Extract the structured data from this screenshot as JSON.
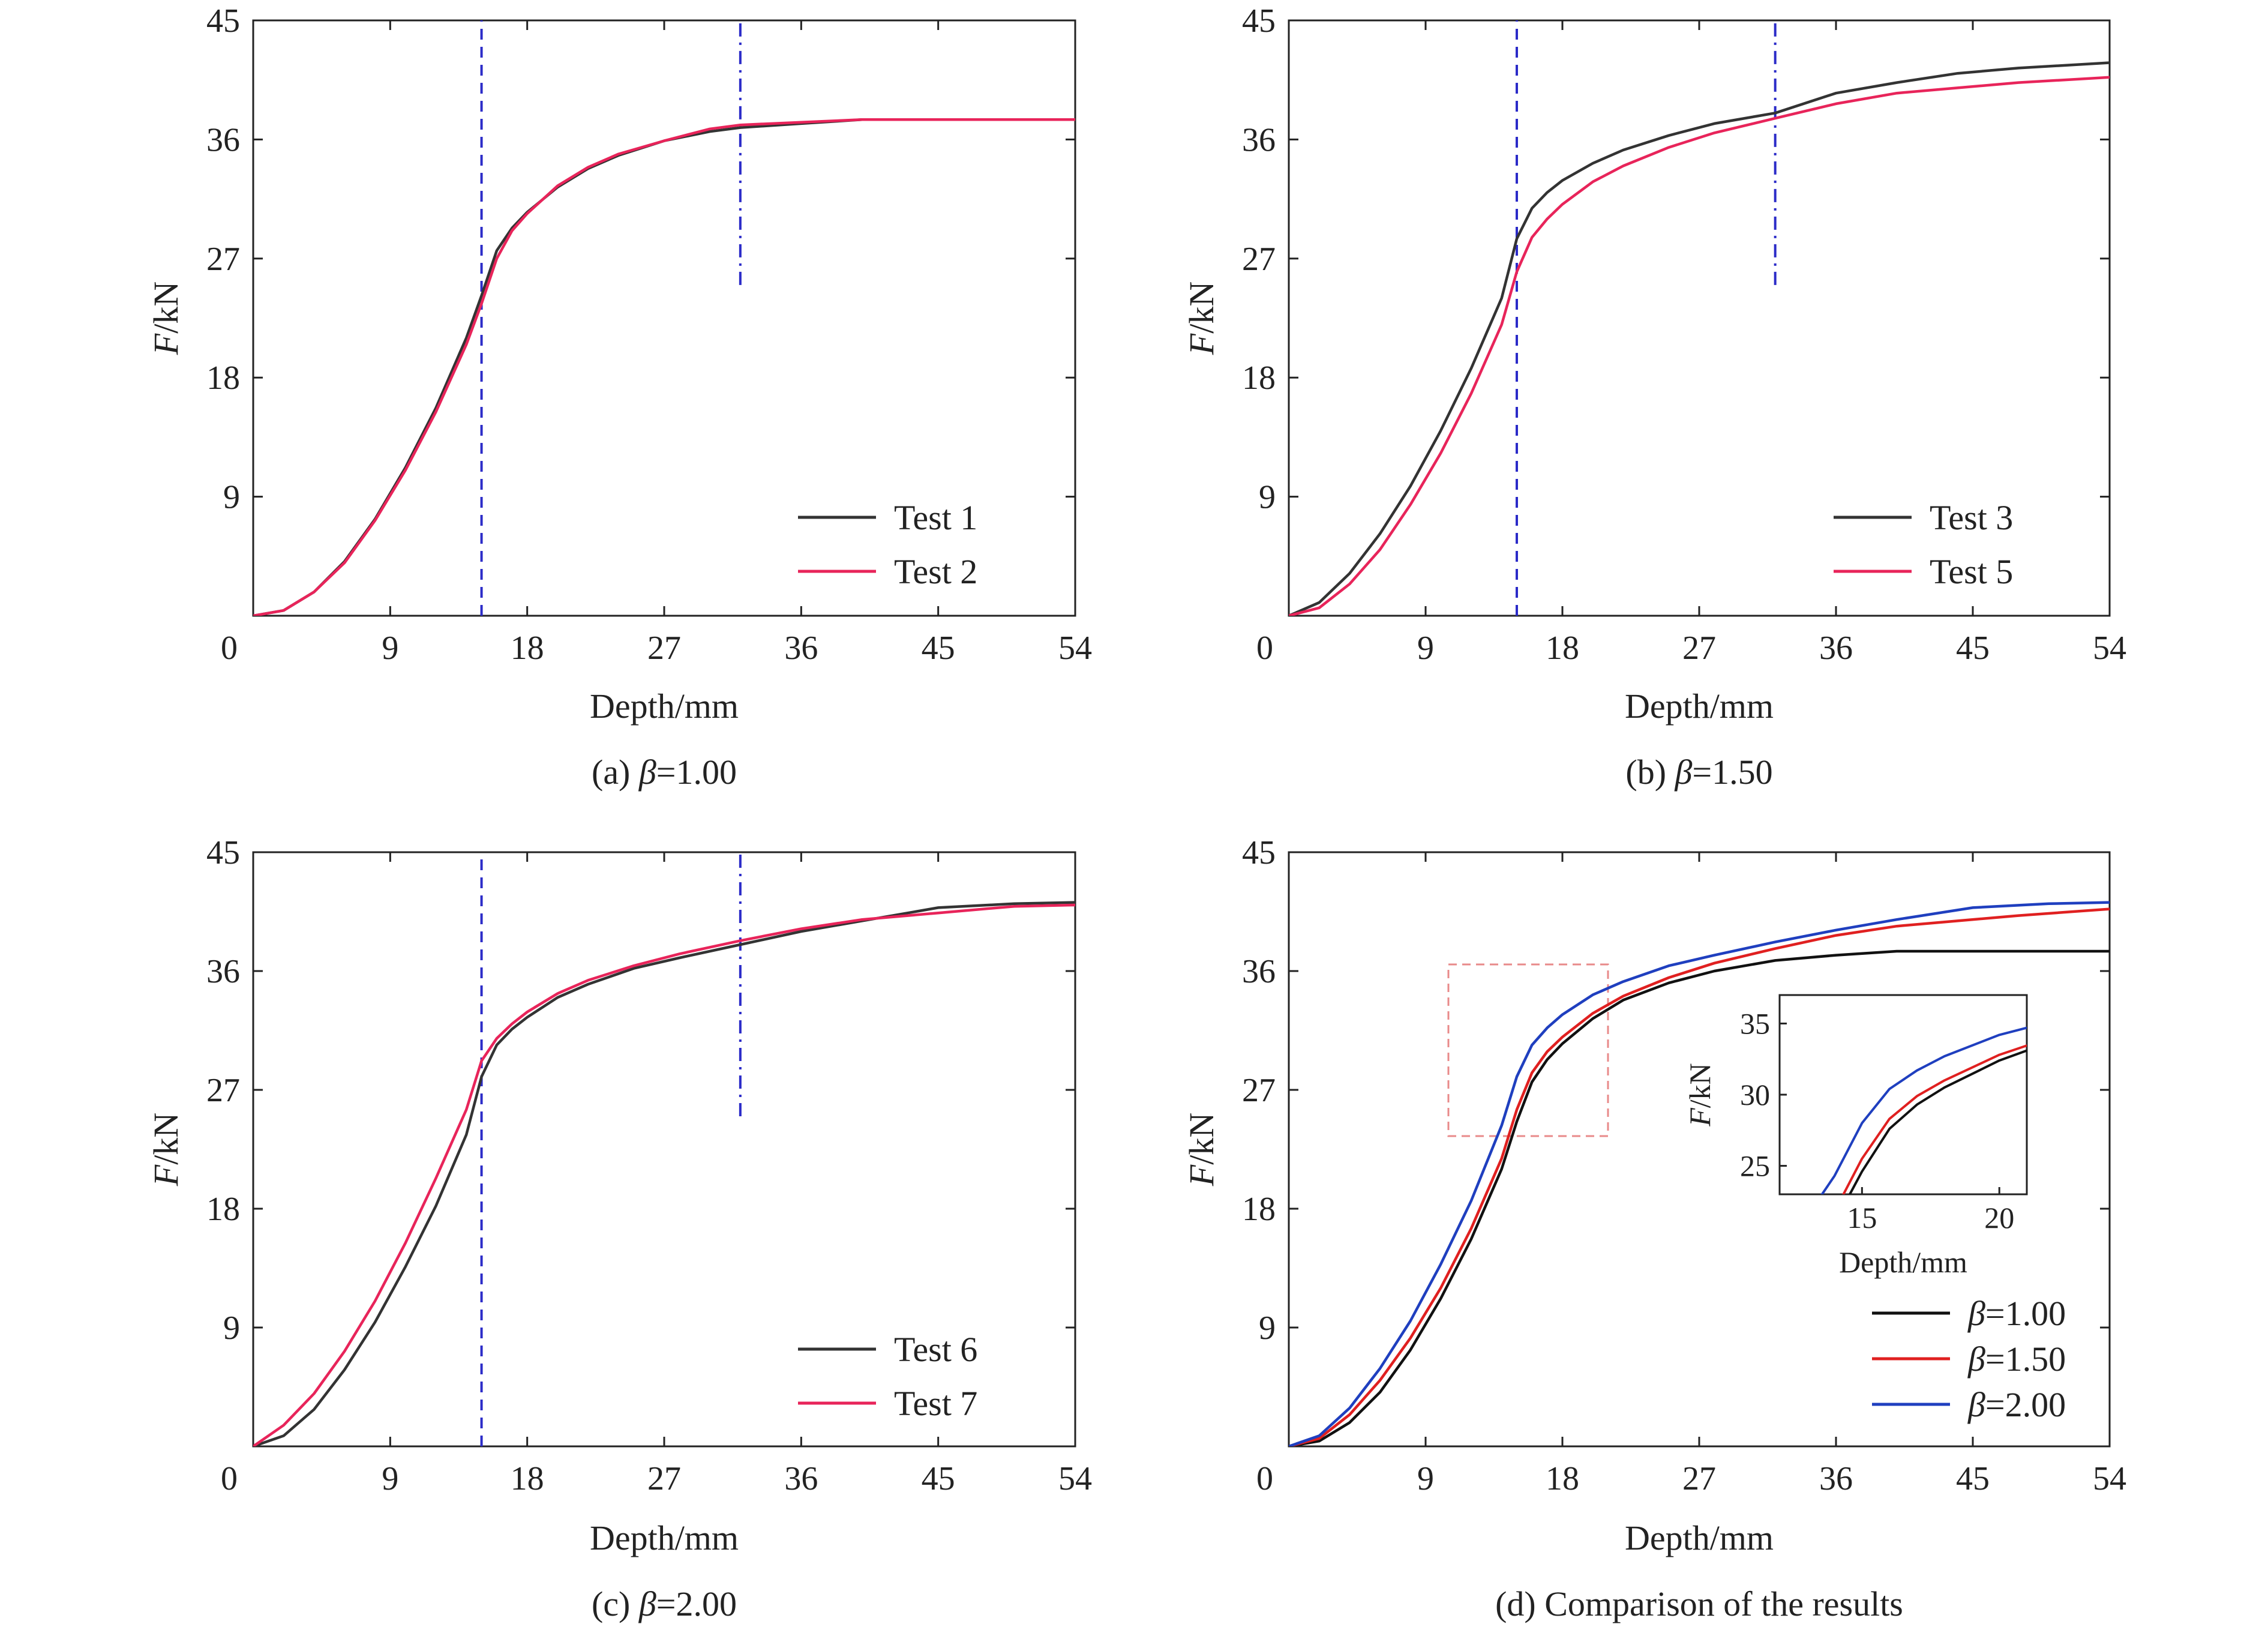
{
  "chart_data": [
    {
      "id": "a",
      "type": "line",
      "caption": {
        "prefix": "(a) ",
        "symbol": "β",
        "suffix": "=1.00"
      },
      "xlabel": "Depth/mm",
      "ylabel": {
        "italic": "F",
        "rest": "/kN"
      },
      "xlim": [
        0,
        54
      ],
      "ylim": [
        0,
        45
      ],
      "xticks": [
        0,
        9,
        18,
        27,
        36,
        45,
        54
      ],
      "yticks": [
        0,
        9,
        18,
        27,
        36,
        45
      ],
      "grid": false,
      "legend_position": "bottom-right",
      "vlines": [
        {
          "x": 15,
          "y0": 0,
          "y1": 45,
          "style": "dashed",
          "color": "#2b2bc8"
        },
        {
          "x": 32,
          "y0": 25,
          "y1": 45,
          "style": "dashdot",
          "color": "#2b2bc8"
        }
      ],
      "series": [
        {
          "name": "Test 1",
          "color": "#333333",
          "x": [
            0,
            2,
            4,
            6,
            8,
            10,
            12,
            14,
            15,
            16,
            17,
            18,
            20,
            22,
            24,
            27,
            30,
            32,
            36,
            40,
            45,
            54
          ],
          "y": [
            0,
            0.4,
            1.8,
            4.1,
            7.3,
            11.2,
            15.7,
            21.0,
            24.2,
            27.6,
            29.3,
            30.5,
            32.4,
            33.8,
            34.8,
            35.9,
            36.6,
            36.9,
            37.2,
            37.5,
            37.5,
            37.5
          ]
        },
        {
          "name": "Test 2",
          "color": "#e8245a",
          "x": [
            0,
            2,
            4,
            6,
            8,
            10,
            12,
            14,
            15,
            16,
            17,
            18,
            20,
            22,
            24,
            27,
            30,
            32,
            36,
            40,
            45,
            54
          ],
          "y": [
            0,
            0.4,
            1.8,
            4.0,
            7.2,
            11.0,
            15.4,
            20.5,
            23.6,
            27.0,
            29.1,
            30.4,
            32.5,
            33.9,
            34.9,
            35.9,
            36.8,
            37.1,
            37.3,
            37.5,
            37.5,
            37.5
          ]
        }
      ]
    },
    {
      "id": "b",
      "type": "line",
      "caption": {
        "prefix": "(b) ",
        "symbol": "β",
        "suffix": "=1.50"
      },
      "xlabel": "Depth/mm",
      "ylabel": {
        "italic": "F",
        "rest": "/kN"
      },
      "xlim": [
        0,
        54
      ],
      "ylim": [
        0,
        45
      ],
      "xticks": [
        0,
        9,
        18,
        27,
        36,
        45,
        54
      ],
      "yticks": [
        0,
        9,
        18,
        27,
        36,
        45
      ],
      "grid": false,
      "legend_position": "bottom-right",
      "vlines": [
        {
          "x": 15,
          "y0": 0,
          "y1": 45,
          "style": "dashed",
          "color": "#2b2bc8"
        },
        {
          "x": 32,
          "y0": 25,
          "y1": 45,
          "style": "dashdot",
          "color": "#2b2bc8"
        }
      ],
      "series": [
        {
          "name": "Test 3",
          "color": "#333333",
          "x": [
            0,
            2,
            4,
            6,
            8,
            10,
            12,
            14,
            15,
            16,
            17,
            18,
            20,
            22,
            25,
            28,
            32,
            36,
            40,
            44,
            48,
            54
          ],
          "y": [
            0,
            1.0,
            3.2,
            6.2,
            9.8,
            14.0,
            18.7,
            24.0,
            28.5,
            30.8,
            32.0,
            32.9,
            34.2,
            35.2,
            36.3,
            37.2,
            38.0,
            39.5,
            40.3,
            41.0,
            41.4,
            41.8
          ]
        },
        {
          "name": "Test 5",
          "color": "#e8245a",
          "x": [
            0,
            2,
            4,
            6,
            8,
            10,
            12,
            14,
            15,
            16,
            17,
            18,
            20,
            22,
            25,
            28,
            32,
            36,
            40,
            44,
            48,
            54
          ],
          "y": [
            0,
            0.6,
            2.4,
            5.0,
            8.4,
            12.3,
            16.8,
            22.0,
            26.0,
            28.6,
            30.0,
            31.1,
            32.8,
            34.0,
            35.4,
            36.5,
            37.6,
            38.7,
            39.5,
            39.9,
            40.3,
            40.7
          ]
        }
      ]
    },
    {
      "id": "c",
      "type": "line",
      "caption": {
        "prefix": "(c) ",
        "symbol": "β",
        "suffix": "=2.00"
      },
      "xlabel": "Depth/mm",
      "ylabel": {
        "italic": "F",
        "rest": "/kN"
      },
      "xlim": [
        0,
        54
      ],
      "ylim": [
        0,
        45
      ],
      "xticks": [
        0,
        9,
        18,
        27,
        36,
        45,
        54
      ],
      "yticks": [
        0,
        9,
        18,
        27,
        36,
        45
      ],
      "grid": false,
      "legend_position": "bottom-right",
      "vlines": [
        {
          "x": 15,
          "y0": 0,
          "y1": 45,
          "style": "dashed",
          "color": "#2b2bc8"
        },
        {
          "x": 32,
          "y0": 25,
          "y1": 45,
          "style": "dashdot",
          "color": "#2b2bc8"
        }
      ],
      "series": [
        {
          "name": "Test 6",
          "color": "#333333",
          "x": [
            0,
            2,
            4,
            6,
            8,
            10,
            12,
            14,
            15,
            16,
            17,
            18,
            20,
            22,
            25,
            28,
            32,
            36,
            40,
            45,
            50,
            54
          ],
          "y": [
            0,
            0.8,
            2.8,
            5.8,
            9.4,
            13.6,
            18.2,
            23.6,
            28.0,
            30.4,
            31.6,
            32.5,
            34.0,
            35.0,
            36.2,
            37.0,
            38.0,
            39.0,
            39.8,
            40.8,
            41.1,
            41.2
          ]
        },
        {
          "name": "Test 7",
          "color": "#e8245a",
          "x": [
            0,
            2,
            4,
            6,
            8,
            10,
            12,
            14,
            15,
            16,
            17,
            18,
            20,
            22,
            25,
            28,
            32,
            36,
            40,
            45,
            50,
            54
          ],
          "y": [
            0,
            1.6,
            4.0,
            7.2,
            11.0,
            15.4,
            20.3,
            25.5,
            29.2,
            30.9,
            32.0,
            32.9,
            34.3,
            35.3,
            36.4,
            37.3,
            38.3,
            39.2,
            39.9,
            40.4,
            40.9,
            41.0
          ]
        }
      ]
    },
    {
      "id": "d",
      "type": "line",
      "caption": {
        "prefix": "(d) Comparison of the results",
        "symbol": "",
        "suffix": ""
      },
      "xlabel": "Depth/mm",
      "ylabel": {
        "italic": "F",
        "rest": "/kN"
      },
      "xlim": [
        0,
        54
      ],
      "ylim": [
        0,
        45
      ],
      "xticks": [
        0,
        9,
        18,
        27,
        36,
        45,
        54
      ],
      "yticks": [
        0,
        9,
        18,
        27,
        36,
        45
      ],
      "grid": false,
      "legend_position": "bottom-right",
      "zoom_box": {
        "x0": 10.5,
        "x1": 21,
        "y0": 23.5,
        "y1": 36.5,
        "color": "#e88a8a"
      },
      "series": [
        {
          "label_symbol": "β",
          "label_value": "=1.00",
          "color": "#111111",
          "x": [
            0,
            2,
            4,
            6,
            8,
            10,
            12,
            14,
            15,
            16,
            17,
            18,
            20,
            22,
            25,
            28,
            32,
            36,
            40,
            45,
            54
          ],
          "y": [
            0,
            0.4,
            1.8,
            4.1,
            7.3,
            11.2,
            15.7,
            21.0,
            24.6,
            27.6,
            29.3,
            30.5,
            32.4,
            33.8,
            35.1,
            36.0,
            36.8,
            37.2,
            37.5,
            37.5,
            37.5
          ]
        },
        {
          "label_symbol": "β",
          "label_value": "=1.50",
          "color": "#e02020",
          "x": [
            0,
            2,
            4,
            6,
            8,
            10,
            12,
            14,
            15,
            16,
            17,
            18,
            20,
            22,
            25,
            28,
            32,
            36,
            40,
            44,
            48,
            54
          ],
          "y": [
            0,
            0.6,
            2.4,
            5.0,
            8.2,
            12.0,
            16.5,
            21.8,
            25.5,
            28.3,
            29.9,
            31.0,
            32.8,
            34.1,
            35.5,
            36.6,
            37.7,
            38.7,
            39.4,
            39.8,
            40.2,
            40.7
          ]
        },
        {
          "label_symbol": "β",
          "label_value": "=2.00",
          "color": "#1f3fbf",
          "x": [
            0,
            2,
            4,
            6,
            8,
            10,
            12,
            14,
            15,
            16,
            17,
            18,
            20,
            22,
            25,
            28,
            32,
            36,
            40,
            45,
            50,
            54
          ],
          "y": [
            0,
            0.8,
            2.9,
            5.9,
            9.5,
            13.8,
            18.6,
            24.3,
            28.0,
            30.4,
            31.7,
            32.7,
            34.2,
            35.2,
            36.4,
            37.2,
            38.2,
            39.1,
            39.9,
            40.8,
            41.1,
            41.2
          ]
        }
      ],
      "inset": {
        "xlabel": "Depth/mm",
        "ylabel": {
          "italic": "F",
          "rest": "/kN"
        },
        "xlim": [
          12,
          21
        ],
        "ylim": [
          23,
          37
        ],
        "xticks": [
          15,
          20
        ],
        "yticks": [
          25,
          30,
          35
        ]
      }
    }
  ]
}
